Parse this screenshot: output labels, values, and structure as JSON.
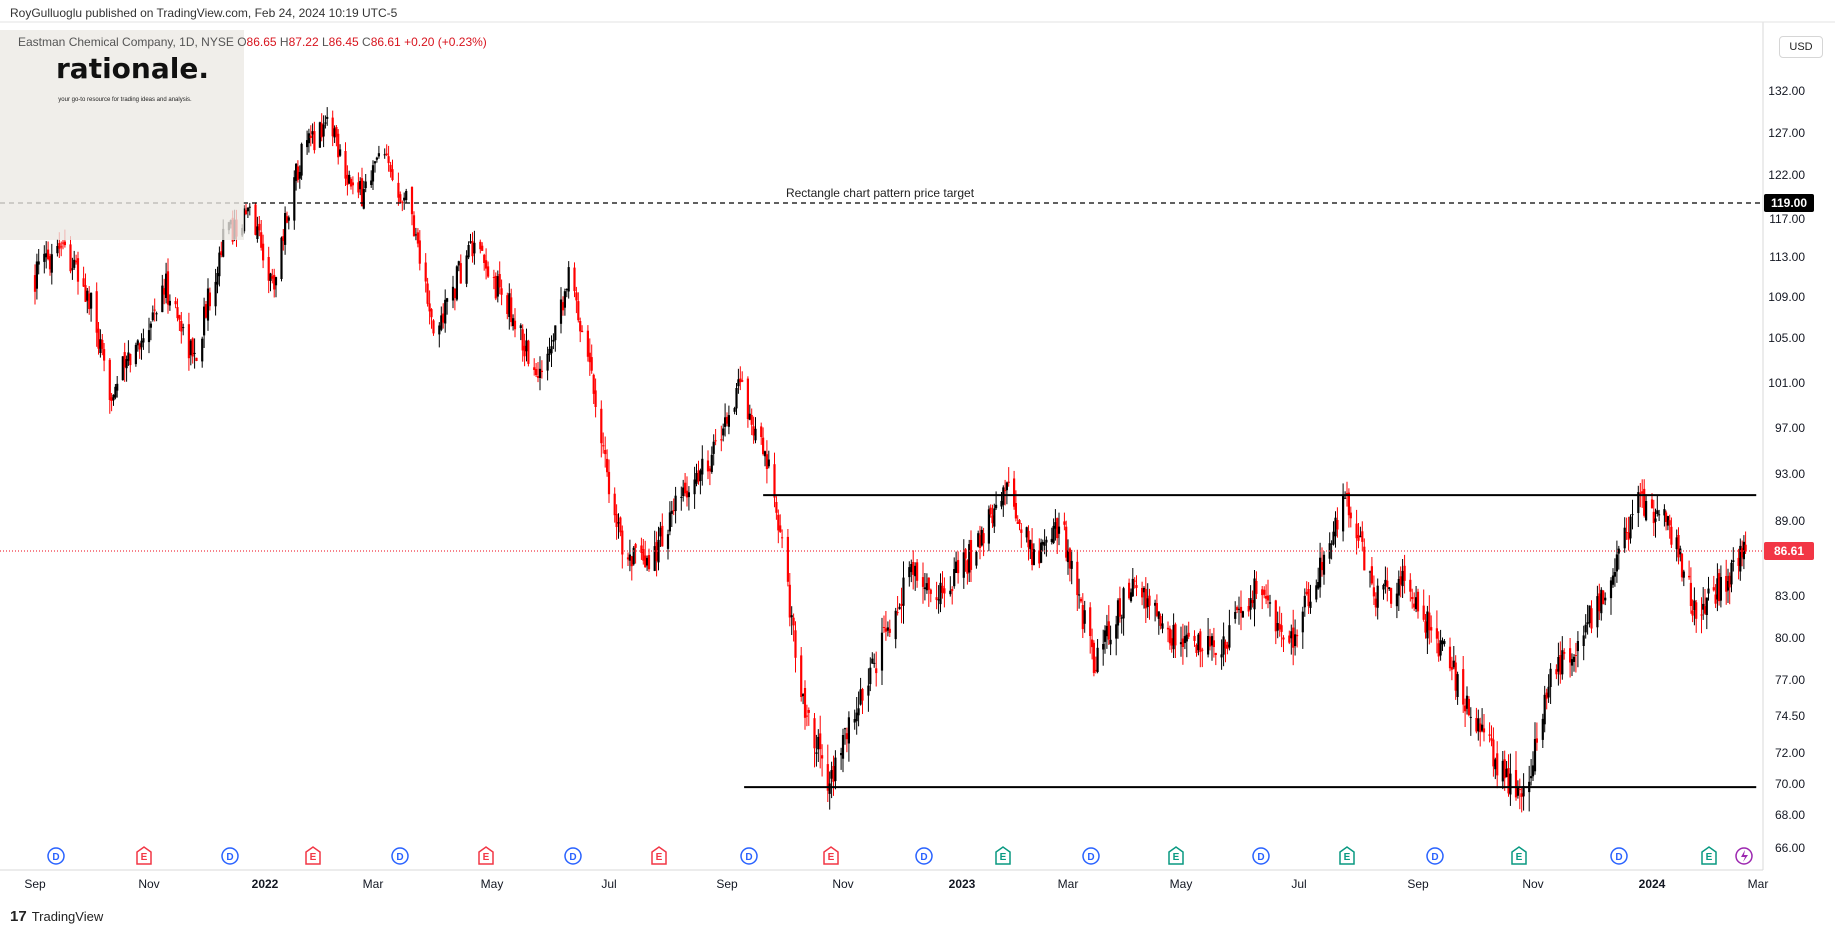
{
  "header": {
    "publisher_line": "RoyGulluoglu published on TradingView.com, Feb 24, 2024 10:19 UTC-5"
  },
  "symbol": {
    "name": "Eastman Chemical Company, 1D, NYSE",
    "open_label": "O",
    "open": "86.65",
    "high_label": "H",
    "high": "87.22",
    "low_label": "L",
    "low": "86.45",
    "close_label": "C",
    "close": "86.61",
    "change": "+0.20 (+0.23%)"
  },
  "watermark": {
    "title": "rationale.",
    "subtitle": "your go-to resource for trading ideas and analysis."
  },
  "price_axis": {
    "currency": "USD",
    "ticks": [
      "132.00",
      "127.00",
      "122.00",
      "117.00",
      "113.00",
      "109.00",
      "105.00",
      "101.00",
      "97.00",
      "93.00",
      "89.00",
      "83.00",
      "80.00",
      "77.00",
      "74.50",
      "72.00",
      "70.00",
      "68.00",
      "66.00"
    ]
  },
  "time_axis": {
    "labels": [
      "Sep",
      "Nov",
      "2022",
      "Mar",
      "May",
      "Jul",
      "Sep",
      "Nov",
      "2023",
      "Mar",
      "May",
      "Jul",
      "Sep",
      "Nov",
      "2024",
      "Mar"
    ],
    "bold_labels": [
      "2022",
      "2023",
      "2024"
    ]
  },
  "events": [
    "D",
    "E",
    "D",
    "E",
    "D",
    "E",
    "D",
    "E",
    "D",
    "E",
    "D",
    "E",
    "D",
    "E",
    "D",
    "E",
    "D",
    "E",
    "D",
    "E"
  ],
  "footer": {
    "brand": "TradingView",
    "mark": "17"
  },
  "chart_data": {
    "type": "candlestick",
    "title": "Eastman Chemical Company, 1D, NYSE",
    "xlabel": "",
    "ylabel": "",
    "ylim": [
      65,
      135
    ],
    "x_range": [
      "2021-09",
      "2024-03"
    ],
    "grid": false,
    "annotations": [
      {
        "type": "hline",
        "y": 119.0,
        "style": "dashed",
        "label": "Rectangle chart pattern price target",
        "price_tag": "119.00"
      },
      {
        "type": "hline",
        "y": 91.2,
        "style": "solid",
        "x_start": "2022-09-20",
        "x_end": "2024-02-29"
      },
      {
        "type": "hline",
        "y": 69.8,
        "style": "solid",
        "x_start": "2022-09-10",
        "x_end": "2024-02-29"
      },
      {
        "type": "hline",
        "y": 86.61,
        "style": "dotted",
        "color": "#f23645",
        "price_tag": "86.61"
      }
    ],
    "colors": {
      "up": "#000000",
      "down": "#ff0000",
      "last_price": "#f23645"
    },
    "series": [
      {
        "name": "Price path",
        "points": [
          [
            "2021-09-01",
            111
          ],
          [
            "2021-09-15",
            115
          ],
          [
            "2021-10-01",
            108
          ],
          [
            "2021-10-10",
            100
          ],
          [
            "2021-10-25",
            104
          ],
          [
            "2021-11-10",
            110
          ],
          [
            "2021-11-25",
            103
          ],
          [
            "2021-12-10",
            115
          ],
          [
            "2021-12-25",
            118
          ],
          [
            "2022-01-05",
            110
          ],
          [
            "2022-01-20",
            124
          ],
          [
            "2022-02-05",
            129
          ],
          [
            "2022-02-20",
            119
          ],
          [
            "2022-03-05",
            124
          ],
          [
            "2022-03-20",
            119
          ],
          [
            "2022-04-01",
            105
          ],
          [
            "2022-04-20",
            114
          ],
          [
            "2022-05-10",
            108
          ],
          [
            "2022-05-25",
            101
          ],
          [
            "2022-06-10",
            111
          ],
          [
            "2022-06-20",
            104
          ],
          [
            "2022-07-05",
            88
          ],
          [
            "2022-07-20",
            85
          ],
          [
            "2022-08-05",
            90
          ],
          [
            "2022-08-25",
            95
          ],
          [
            "2022-09-08",
            101
          ],
          [
            "2022-09-25",
            92
          ],
          [
            "2022-10-10",
            76
          ],
          [
            "2022-10-25",
            70
          ],
          [
            "2022-11-05",
            74
          ],
          [
            "2022-11-20",
            79
          ],
          [
            "2022-12-05",
            85
          ],
          [
            "2022-12-20",
            83
          ],
          [
            "2023-01-10",
            87
          ],
          [
            "2023-01-25",
            92
          ],
          [
            "2023-02-10",
            86
          ],
          [
            "2023-02-25",
            89
          ],
          [
            "2023-03-15",
            78
          ],
          [
            "2023-04-05",
            84
          ],
          [
            "2023-04-25",
            80
          ],
          [
            "2023-05-20",
            79
          ],
          [
            "2023-06-10",
            84
          ],
          [
            "2023-06-25",
            79
          ],
          [
            "2023-07-15",
            86
          ],
          [
            "2023-07-25",
            91
          ],
          [
            "2023-08-10",
            83
          ],
          [
            "2023-08-25",
            84
          ],
          [
            "2023-09-15",
            79
          ],
          [
            "2023-10-05",
            73
          ],
          [
            "2023-10-20",
            70
          ],
          [
            "2023-10-27",
            69
          ],
          [
            "2023-11-10",
            77
          ],
          [
            "2023-11-25",
            80
          ],
          [
            "2023-12-10",
            84
          ],
          [
            "2023-12-25",
            91
          ],
          [
            "2024-01-10",
            89
          ],
          [
            "2024-01-25",
            82
          ],
          [
            "2024-02-10",
            84
          ],
          [
            "2024-02-23",
            86.61
          ]
        ]
      }
    ]
  }
}
